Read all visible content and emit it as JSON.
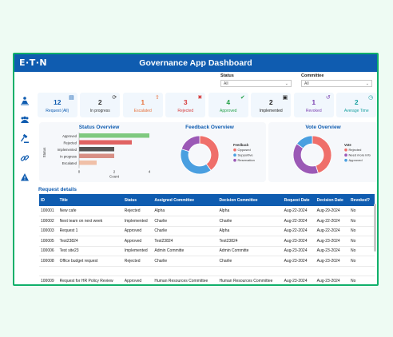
{
  "app": {
    "logo": "E·T·N",
    "title": "Governance App Dashboard"
  },
  "filters": [
    {
      "label": "Status",
      "value": "All"
    },
    {
      "label": "Committee",
      "value": "All"
    }
  ],
  "nav": [
    "people-group-icon",
    "team-icon",
    "gavel-icon",
    "link-icon",
    "warning-icon"
  ],
  "kpis": [
    {
      "value": "12",
      "label": "Request (All)",
      "icon": "document-icon",
      "color": "#0f5cb0"
    },
    {
      "value": "2",
      "label": "In progress",
      "icon": "progress-icon",
      "color": "#333333"
    },
    {
      "value": "1",
      "label": "Escalated",
      "icon": "escalate-icon",
      "color": "#e8703a"
    },
    {
      "value": "3",
      "label": "Rejected",
      "icon": "reject-icon",
      "color": "#d63a3a"
    },
    {
      "value": "4",
      "label": "Approved",
      "icon": "check-icon",
      "color": "#24a148"
    },
    {
      "value": "2",
      "label": "Implemented",
      "icon": "clipboard-icon",
      "color": "#222222"
    },
    {
      "value": "1",
      "label": "Revoked",
      "icon": "revoke-icon",
      "color": "#7b3fb0"
    },
    {
      "value": "2",
      "label": "Average Time",
      "icon": "clock-icon",
      "color": "#1aa1a1"
    }
  ],
  "status_chart": {
    "title": "Status Overview",
    "ylabel": "Status",
    "xlabel": "Count",
    "categories": [
      "Approved",
      "Rejected",
      "Implemented",
      "In progress",
      "Escalated"
    ],
    "values": [
      4,
      3,
      2,
      2,
      1
    ],
    "colors": [
      "#7fc97f",
      "#e06363",
      "#555555",
      "#d88f85",
      "#f0c0a8"
    ],
    "xticks": [
      "0",
      "2",
      "4"
    ],
    "xmax": 4
  },
  "feedback_chart": {
    "title": "Feedback Overview",
    "legend_title": "Feedback",
    "series": [
      {
        "name": "Opposed",
        "value": 40,
        "color": "#ef6f6a"
      },
      {
        "name": "Supportive",
        "value": 40,
        "color": "#4a9fe0"
      },
      {
        "name": "Reservation",
        "value": 20,
        "color": "#9b59b6"
      }
    ]
  },
  "vote_chart": {
    "title": "Vote Overview",
    "legend_title": "Vote",
    "series": [
      {
        "name": "Rejected",
        "value": 45,
        "color": "#ef6f6a"
      },
      {
        "name": "Need more info",
        "value": 40,
        "color": "#9b59b6"
      },
      {
        "name": "Approved",
        "value": 15,
        "color": "#4a9fe0"
      }
    ]
  },
  "requests": {
    "title": "Request details",
    "columns": [
      "ID",
      "Title",
      "Status",
      "Assigned Committee",
      "Decision Committee",
      "Request Date",
      "Decision Date",
      "Revoked?"
    ],
    "rows": [
      [
        "100001",
        "New cafe",
        "Rejected",
        "Alpha",
        "Alpha",
        "Aug-22-2024",
        "Aug-29-2024",
        "No"
      ],
      [
        "100002",
        "Next team on next week",
        "Implemented",
        "Charlie",
        "Charlie",
        "Aug-22-2024",
        "Aug-22-2024",
        "No"
      ],
      [
        "100003",
        "Request 1",
        "Approved",
        "Charlie",
        "Alpha",
        "Aug-22-2024",
        "Aug-22-2024",
        "No"
      ],
      [
        "100005",
        "Test23824",
        "Approved",
        "Test23824",
        "Test23824",
        "Aug-23-2024",
        "Aug-23-2024",
        "No"
      ],
      [
        "100006",
        "Test site23",
        "Implemented",
        "Admin Committe",
        "Admin Committe",
        "Aug-23-2024",
        "Aug-23-2024",
        "No"
      ],
      [
        "100008",
        "Office budget request",
        "Rejected",
        "Charlie",
        "Charlie",
        "Aug-23-2024",
        "Aug-23-2024",
        "No"
      ],
      [
        "",
        "",
        "",
        "",
        "",
        "",
        "",
        ""
      ],
      [
        "100009",
        "Request for HR Policy Review",
        "Approved",
        "Human Resources Committee",
        "Human Resources Committee",
        "Aug-23-2024",
        "Aug-23-2024",
        "No"
      ]
    ]
  }
}
